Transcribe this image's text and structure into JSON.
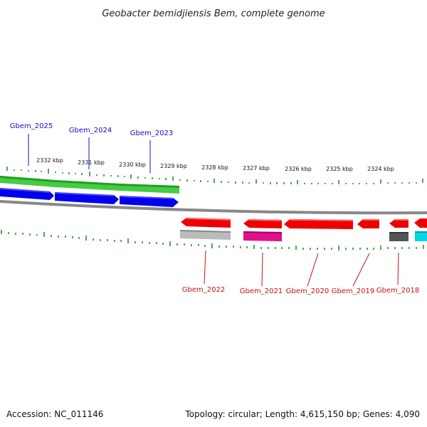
{
  "title": "Geobacter bemidjiensis Bem, complete genome",
  "footer": {
    "accession": "Accession: NC_011146",
    "topology": "Topology: circular; Length: 4,615,150 bp; Genes: 4,090"
  },
  "kbp_labels": [
    "2332 kbp",
    "2331 kbp",
    "2330 kbp",
    "2329 kbp",
    "2328 kbp",
    "2327 kbp",
    "2326 kbp",
    "2325 kbp",
    "2324 kbp"
  ],
  "genes_top": [
    "Gbem_2025",
    "Gbem_2024",
    "Gbem_2023"
  ],
  "genes_bottom": [
    "Gbem_2022",
    "Gbem_2021",
    "Gbem_2020",
    "Gbem_2019",
    "Gbem_2018"
  ],
  "colors": {
    "forward_strand": "#0000ee",
    "reverse_strand": "#ee0000",
    "forward_feature": "#44cc44",
    "backbone": "#888888",
    "tick": "#1a8a1a",
    "magenta": "#e0108a",
    "cyan": "#00d8e8",
    "gray": "#bbbbbb",
    "dark_gray": "#555555"
  }
}
